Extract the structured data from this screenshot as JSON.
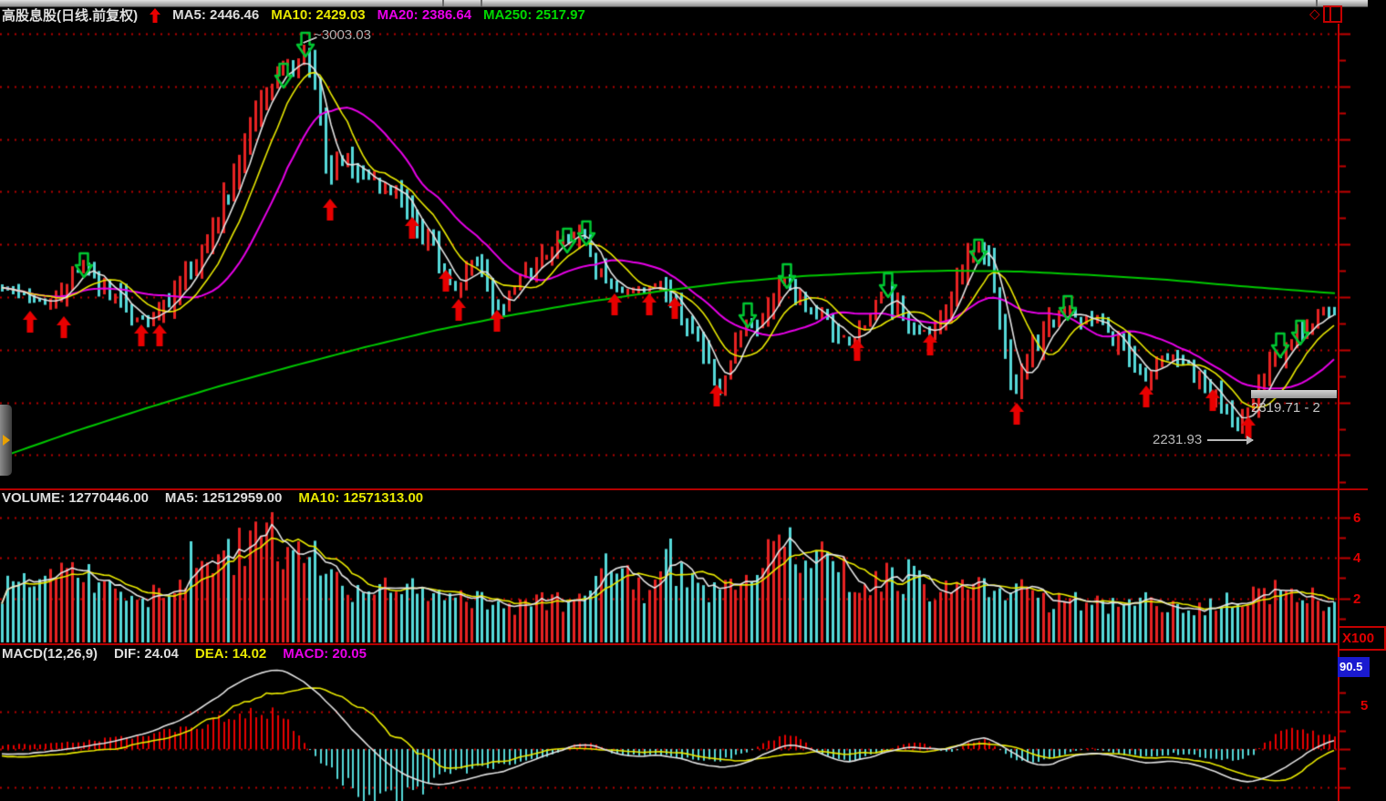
{
  "colors": {
    "up": "#e62222",
    "down": "#55d8d8",
    "ma5": "#e2e2e2",
    "ma10": "#e8e800",
    "ma20": "#e800e8",
    "ma250": "#00c800",
    "axis": "#c40000",
    "grid_dot": "#b80000",
    "signal_up": "#e80000",
    "signal_down": "#00c832",
    "badge_bg": "#1a1ad0",
    "annotation": "#b0b0b0"
  },
  "header": {
    "title": "高股息股(日线.前复权)",
    "ma5": "MA5: 2446.46",
    "ma10": "MA10: 2429.03",
    "ma20": "MA20: 2386.64",
    "ma250": "MA250: 2517.97"
  },
  "corner": {
    "diamond": "◇"
  },
  "main_chart": {
    "peak_label": "~3003.03",
    "low_label": "2231.93",
    "price_flag": "2319.71 - 2"
  },
  "volume_panel": {
    "volume": "VOLUME: 12770446.00",
    "ma5": "MA5: 12512959.00",
    "ma10": "MA10: 12571313.00",
    "axis_labels": [
      "6",
      "4",
      "2"
    ],
    "unit": "X100"
  },
  "macd_panel": {
    "name": "MACD(12,26,9)",
    "dif": "DIF: 24.04",
    "dea": "DEA: 14.02",
    "macd": "MACD: 20.05",
    "axis_label": "5",
    "badge": "90.5"
  },
  "chart_data": {
    "type": "candlestick+volume+macd",
    "title": "高股息股 daily, forward-adjusted",
    "price_peak": 3003.03,
    "price_low": 2231.93,
    "last_close": 2446.46,
    "price_anchors": [
      [
        0,
        318
      ],
      [
        15,
        322
      ],
      [
        30,
        328
      ],
      [
        45,
        330
      ],
      [
        60,
        331
      ],
      [
        75,
        308
      ],
      [
        90,
        290
      ],
      [
        100,
        305
      ],
      [
        115,
        315
      ],
      [
        130,
        327
      ],
      [
        150,
        352
      ],
      [
        165,
        352
      ],
      [
        180,
        338
      ],
      [
        195,
        322
      ],
      [
        210,
        300
      ],
      [
        225,
        268
      ],
      [
        240,
        235
      ],
      [
        255,
        200
      ],
      [
        268,
        160
      ],
      [
        280,
        125
      ],
      [
        292,
        98
      ],
      [
        302,
        80
      ],
      [
        312,
        62
      ],
      [
        320,
        85
      ],
      [
        328,
        65
      ],
      [
        336,
        60
      ],
      [
        344,
        95
      ],
      [
        352,
        130
      ],
      [
        360,
        215
      ],
      [
        368,
        180
      ],
      [
        376,
        172
      ],
      [
        385,
        178
      ],
      [
        395,
        198
      ],
      [
        405,
        195
      ],
      [
        415,
        205
      ],
      [
        428,
        210
      ],
      [
        440,
        222
      ],
      [
        452,
        235
      ],
      [
        462,
        258
      ],
      [
        472,
        272
      ],
      [
        482,
        290
      ],
      [
        492,
        302
      ],
      [
        502,
        325
      ],
      [
        512,
        292
      ],
      [
        522,
        288
      ],
      [
        532,
        310
      ],
      [
        542,
        338
      ],
      [
        552,
        332
      ],
      [
        562,
        315
      ],
      [
        575,
        300
      ],
      [
        588,
        290
      ],
      [
        600,
        278
      ],
      [
        612,
        265
      ],
      [
        625,
        258
      ],
      [
        638,
        258
      ],
      [
        650,
        285
      ],
      [
        662,
        305
      ],
      [
        674,
        320
      ],
      [
        686,
        318
      ],
      [
        698,
        318
      ],
      [
        710,
        322
      ],
      [
        722,
        308
      ],
      [
        734,
        325
      ],
      [
        746,
        345
      ],
      [
        758,
        360
      ],
      [
        770,
        390
      ],
      [
        782,
        415
      ],
      [
        790,
        425
      ],
      [
        800,
        392
      ],
      [
        812,
        360
      ],
      [
        822,
        352
      ],
      [
        832,
        360
      ],
      [
        845,
        335
      ],
      [
        858,
        305
      ],
      [
        868,
        320
      ],
      [
        880,
        335
      ],
      [
        892,
        345
      ],
      [
        905,
        352
      ],
      [
        918,
        365
      ],
      [
        930,
        375
      ],
      [
        942,
        368
      ],
      [
        955,
        352
      ],
      [
        967,
        318
      ],
      [
        980,
        340
      ],
      [
        992,
        352
      ],
      [
        1005,
        362
      ],
      [
        1018,
        368
      ],
      [
        1030,
        352
      ],
      [
        1042,
        330
      ],
      [
        1055,
        295
      ],
      [
        1068,
        272
      ],
      [
        1078,
        272
      ],
      [
        1088,
        300
      ],
      [
        1098,
        360
      ],
      [
        1108,
        420
      ],
      [
        1115,
        432
      ],
      [
        1122,
        405
      ],
      [
        1132,
        385
      ],
      [
        1142,
        375
      ],
      [
        1152,
        352
      ],
      [
        1162,
        340
      ],
      [
        1172,
        336
      ],
      [
        1182,
        348
      ],
      [
        1192,
        352
      ],
      [
        1202,
        355
      ],
      [
        1212,
        362
      ],
      [
        1222,
        372
      ],
      [
        1232,
        382
      ],
      [
        1242,
        395
      ],
      [
        1252,
        415
      ],
      [
        1262,
        408
      ],
      [
        1272,
        395
      ],
      [
        1282,
        392
      ],
      [
        1292,
        398
      ],
      [
        1302,
        402
      ],
      [
        1312,
        415
      ],
      [
        1322,
        425
      ],
      [
        1332,
        428
      ],
      [
        1342,
        445
      ],
      [
        1352,
        462
      ],
      [
        1360,
        475
      ],
      [
        1368,
        455
      ],
      [
        1376,
        440
      ],
      [
        1384,
        425
      ],
      [
        1392,
        408
      ],
      [
        1400,
        395
      ],
      [
        1410,
        380
      ],
      [
        1420,
        368
      ],
      [
        1430,
        358
      ],
      [
        1440,
        350
      ],
      [
        1450,
        345
      ],
      [
        1466,
        340
      ]
    ],
    "ma250_anchors": [
      [
        0,
        502
      ],
      [
        80,
        474
      ],
      [
        160,
        448
      ],
      [
        240,
        424
      ],
      [
        320,
        402
      ],
      [
        400,
        381
      ],
      [
        480,
        362
      ],
      [
        560,
        346
      ],
      [
        640,
        332
      ],
      [
        720,
        320
      ],
      [
        800,
        310
      ],
      [
        880,
        303
      ],
      [
        960,
        299
      ],
      [
        1040,
        297
      ],
      [
        1120,
        298
      ],
      [
        1200,
        302
      ],
      [
        1280,
        307
      ],
      [
        1360,
        314
      ],
      [
        1466,
        322
      ]
    ],
    "volume_anchors": [
      [
        0,
        58
      ],
      [
        30,
        60
      ],
      [
        60,
        72
      ],
      [
        90,
        80
      ],
      [
        120,
        58
      ],
      [
        150,
        45
      ],
      [
        180,
        55
      ],
      [
        210,
        88
      ],
      [
        230,
        72
      ],
      [
        255,
        95
      ],
      [
        275,
        118
      ],
      [
        290,
        128
      ],
      [
        305,
        108
      ],
      [
        325,
        95
      ],
      [
        345,
        88
      ],
      [
        365,
        68
      ],
      [
        385,
        55
      ],
      [
        405,
        62
      ],
      [
        425,
        56
      ],
      [
        445,
        60
      ],
      [
        465,
        55
      ],
      [
        485,
        48
      ],
      [
        505,
        45
      ],
      [
        525,
        50
      ],
      [
        545,
        40
      ],
      [
        565,
        36
      ],
      [
        585,
        42
      ],
      [
        605,
        46
      ],
      [
        625,
        42
      ],
      [
        645,
        75
      ],
      [
        658,
        92
      ],
      [
        672,
        60
      ],
      [
        690,
        68
      ],
      [
        705,
        58
      ],
      [
        720,
        72
      ],
      [
        732,
        95
      ],
      [
        748,
        70
      ],
      [
        765,
        58
      ],
      [
        785,
        62
      ],
      [
        805,
        58
      ],
      [
        825,
        64
      ],
      [
        845,
        105
      ],
      [
        858,
        122
      ],
      [
        872,
        92
      ],
      [
        888,
        78
      ],
      [
        902,
        102
      ],
      [
        918,
        78
      ],
      [
        935,
        68
      ],
      [
        950,
        62
      ],
      [
        968,
        72
      ],
      [
        985,
        68
      ],
      [
        1000,
        84
      ],
      [
        1015,
        58
      ],
      [
        1030,
        52
      ],
      [
        1045,
        60
      ],
      [
        1060,
        65
      ],
      [
        1075,
        58
      ],
      [
        1090,
        52
      ],
      [
        1105,
        58
      ],
      [
        1120,
        55
      ],
      [
        1135,
        48
      ],
      [
        1150,
        45
      ],
      [
        1165,
        42
      ],
      [
        1180,
        44
      ],
      [
        1195,
        46
      ],
      [
        1210,
        42
      ],
      [
        1225,
        40
      ],
      [
        1240,
        42
      ],
      [
        1255,
        44
      ],
      [
        1270,
        40
      ],
      [
        1285,
        38
      ],
      [
        1300,
        40
      ],
      [
        1315,
        38
      ],
      [
        1330,
        40
      ],
      [
        1345,
        44
      ],
      [
        1360,
        48
      ],
      [
        1375,
        52
      ],
      [
        1390,
        58
      ],
      [
        1405,
        50
      ],
      [
        1420,
        46
      ],
      [
        1435,
        48
      ],
      [
        1450,
        46
      ],
      [
        1466,
        44
      ]
    ],
    "dif_anchors": [
      [
        0,
        828
      ],
      [
        40,
        826
      ],
      [
        80,
        821
      ],
      [
        120,
        814
      ],
      [
        160,
        804
      ],
      [
        200,
        788
      ],
      [
        230,
        768
      ],
      [
        260,
        748
      ],
      [
        285,
        737
      ],
      [
        300,
        735
      ],
      [
        315,
        739
      ],
      [
        330,
        748
      ],
      [
        345,
        760
      ],
      [
        360,
        775
      ],
      [
        380,
        797
      ],
      [
        400,
        817
      ],
      [
        420,
        836
      ],
      [
        440,
        850
      ],
      [
        460,
        858
      ],
      [
        475,
        861
      ],
      [
        490,
        860
      ],
      [
        510,
        855
      ],
      [
        530,
        850
      ],
      [
        550,
        846
      ],
      [
        570,
        839
      ],
      [
        590,
        831
      ],
      [
        610,
        824
      ],
      [
        625,
        819
      ],
      [
        640,
        817
      ],
      [
        655,
        820
      ],
      [
        670,
        826
      ],
      [
        685,
        830
      ],
      [
        700,
        830
      ],
      [
        715,
        828
      ],
      [
        730,
        830
      ],
      [
        745,
        833
      ],
      [
        760,
        837
      ],
      [
        775,
        841
      ],
      [
        790,
        842
      ],
      [
        805,
        840
      ],
      [
        820,
        835
      ],
      [
        835,
        828
      ],
      [
        850,
        821
      ],
      [
        865,
        817
      ],
      [
        880,
        820
      ],
      [
        895,
        826
      ],
      [
        910,
        832
      ],
      [
        925,
        836
      ],
      [
        940,
        834
      ],
      [
        955,
        830
      ],
      [
        970,
        825
      ],
      [
        985,
        821
      ],
      [
        1000,
        820
      ],
      [
        1015,
        821
      ],
      [
        1030,
        823
      ],
      [
        1045,
        820
      ],
      [
        1060,
        813
      ],
      [
        1075,
        809
      ],
      [
        1090,
        814
      ],
      [
        1105,
        824
      ],
      [
        1120,
        834
      ],
      [
        1135,
        840
      ],
      [
        1150,
        839
      ],
      [
        1165,
        833
      ],
      [
        1180,
        828
      ],
      [
        1195,
        826
      ],
      [
        1210,
        828
      ],
      [
        1225,
        831
      ],
      [
        1240,
        834
      ],
      [
        1255,
        837
      ],
      [
        1270,
        836
      ],
      [
        1285,
        835
      ],
      [
        1300,
        837
      ],
      [
        1315,
        841
      ],
      [
        1330,
        847
      ],
      [
        1345,
        853
      ],
      [
        1360,
        858
      ],
      [
        1375,
        857
      ],
      [
        1390,
        851
      ],
      [
        1405,
        843
      ],
      [
        1420,
        833
      ],
      [
        1435,
        824
      ],
      [
        1450,
        816
      ],
      [
        1466,
        810
      ]
    ],
    "hist_anchors": [
      [
        0,
        4
      ],
      [
        40,
        6
      ],
      [
        80,
        8
      ],
      [
        120,
        11
      ],
      [
        160,
        15
      ],
      [
        200,
        22
      ],
      [
        230,
        30
      ],
      [
        260,
        38
      ],
      [
        285,
        42
      ],
      [
        300,
        38
      ],
      [
        315,
        28
      ],
      [
        330,
        12
      ],
      [
        345,
        -8
      ],
      [
        360,
        -22
      ],
      [
        380,
        -38
      ],
      [
        400,
        -50
      ],
      [
        420,
        -56
      ],
      [
        440,
        -54
      ],
      [
        460,
        -44
      ],
      [
        475,
        -36
      ],
      [
        490,
        -30
      ],
      [
        510,
        -24
      ],
      [
        530,
        -20
      ],
      [
        550,
        -17
      ],
      [
        570,
        -14
      ],
      [
        590,
        -10
      ],
      [
        610,
        -5
      ],
      [
        625,
        4
      ],
      [
        640,
        7
      ],
      [
        655,
        4
      ],
      [
        670,
        -4
      ],
      [
        685,
        -8
      ],
      [
        700,
        -7
      ],
      [
        715,
        -5
      ],
      [
        730,
        -7
      ],
      [
        745,
        -10
      ],
      [
        760,
        -13
      ],
      [
        775,
        -14
      ],
      [
        790,
        -12
      ],
      [
        805,
        -8
      ],
      [
        820,
        -3
      ],
      [
        835,
        6
      ],
      [
        850,
        12
      ],
      [
        865,
        14
      ],
      [
        880,
        9
      ],
      [
        895,
        -3
      ],
      [
        910,
        -10
      ],
      [
        925,
        -14
      ],
      [
        940,
        -11
      ],
      [
        955,
        -7
      ],
      [
        970,
        -3
      ],
      [
        985,
        4
      ],
      [
        1000,
        7
      ],
      [
        1015,
        5
      ],
      [
        1030,
        -2
      ],
      [
        1045,
        -4
      ],
      [
        1060,
        7
      ],
      [
        1075,
        11
      ],
      [
        1090,
        4
      ],
      [
        1105,
        -7
      ],
      [
        1120,
        -13
      ],
      [
        1135,
        -15
      ],
      [
        1150,
        -11
      ],
      [
        1165,
        -6
      ],
      [
        1180,
        -2
      ],
      [
        1195,
        2
      ],
      [
        1210,
        -2
      ],
      [
        1225,
        -5
      ],
      [
        1240,
        -7
      ],
      [
        1255,
        -9
      ],
      [
        1270,
        -7
      ],
      [
        1285,
        -5
      ],
      [
        1300,
        -6
      ],
      [
        1315,
        -8
      ],
      [
        1330,
        -11
      ],
      [
        1345,
        -13
      ],
      [
        1360,
        -12
      ],
      [
        1375,
        -6
      ],
      [
        1385,
        6
      ],
      [
        1395,
        13
      ],
      [
        1405,
        18
      ],
      [
        1415,
        21
      ],
      [
        1425,
        23
      ],
      [
        1435,
        21
      ],
      [
        1445,
        19
      ],
      [
        1455,
        16
      ],
      [
        1466,
        14
      ]
    ],
    "buy_arrows": [
      [
        33,
        341
      ],
      [
        70,
        347
      ],
      [
        155,
        356
      ],
      [
        175,
        356
      ],
      [
        362,
        218
      ],
      [
        452,
        238
      ],
      [
        489,
        296
      ],
      [
        503,
        328
      ],
      [
        545,
        340
      ],
      [
        674,
        322
      ],
      [
        712,
        322
      ],
      [
        740,
        326
      ],
      [
        786,
        422
      ],
      [
        940,
        372
      ],
      [
        1020,
        366
      ],
      [
        1115,
        442
      ],
      [
        1257,
        423
      ],
      [
        1330,
        427
      ],
      [
        1369,
        457
      ]
    ],
    "sell_arrows": [
      [
        92,
        278
      ],
      [
        311,
        70
      ],
      [
        335,
        36
      ],
      [
        622,
        251
      ],
      [
        643,
        243
      ],
      [
        820,
        333
      ],
      [
        863,
        290
      ],
      [
        974,
        300
      ],
      [
        1073,
        263
      ],
      [
        1171,
        325
      ],
      [
        1404,
        366
      ],
      [
        1426,
        352
      ]
    ]
  }
}
